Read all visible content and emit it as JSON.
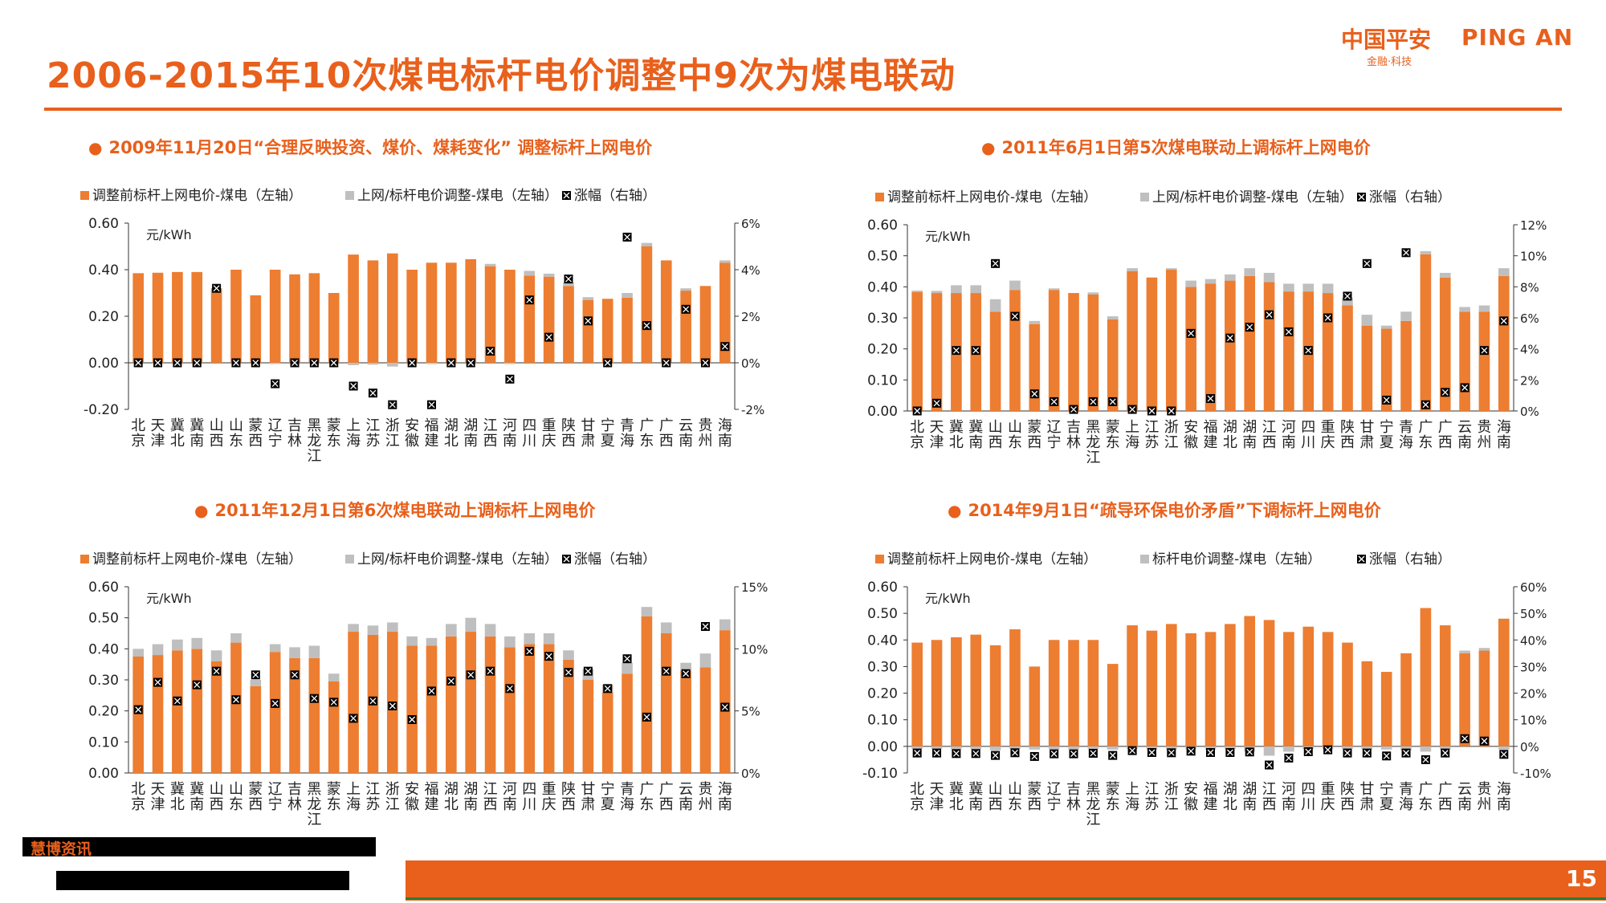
{
  "title": "2006-2015年10次煤电标杆电价调整中9次为煤电联动",
  "logo": {
    "cn": "中国平安",
    "en": "PING AN",
    "sub": "金融·科技"
  },
  "source": {
    "label": "慧博资讯"
  },
  "page_number": "15",
  "colors": {
    "orange": "#ED7D31",
    "gray": "#BFBFBF",
    "title": "#E8601C",
    "marker": "#000000"
  },
  "chart_data": [
    {
      "type": "bar",
      "panel_title": "2009年11月20日“合理反映投资、煤价、煤耗变化” 调整标杆上网电价",
      "legend": [
        "调整前标杆上网电价-煤电（左轴）",
        "上网/标杆电价调整-煤电（左轴）",
        "涨幅（右轴）"
      ],
      "unit": "元/kWh",
      "categories": [
        "北京",
        "天津",
        "冀北",
        "冀南",
        "山西",
        "山东",
        "蒙西",
        "辽宁",
        "吉林",
        "黑龙江",
        "蒙东",
        "上海",
        "江苏",
        "浙江",
        "安徽",
        "福建",
        "湖北",
        "湖南",
        "江西",
        "河南",
        "四川",
        "重庆",
        "陕西",
        "甘肃",
        "宁夏",
        "青海",
        "广东",
        "广西",
        "云南",
        "贵州",
        "海南"
      ],
      "category_lines": [
        [
          "北",
          "京"
        ],
        [
          "天",
          "津"
        ],
        [
          "冀",
          "北"
        ],
        [
          "冀",
          "南"
        ],
        [
          "山",
          "西"
        ],
        [
          "山",
          "东"
        ],
        [
          "蒙",
          "西"
        ],
        [
          "辽",
          "宁"
        ],
        [
          "吉",
          "林"
        ],
        [
          "黑",
          "龙",
          "江"
        ],
        [
          "蒙",
          "东"
        ],
        [
          "上",
          "海"
        ],
        [
          "江",
          "苏"
        ],
        [
          "浙",
          "江"
        ],
        [
          "安",
          "徽"
        ],
        [
          "福",
          "建"
        ],
        [
          "湖",
          "北"
        ],
        [
          "湖",
          "南"
        ],
        [
          "江",
          "西"
        ],
        [
          "河",
          "南"
        ],
        [
          "四",
          "川"
        ],
        [
          "重",
          "庆"
        ],
        [
          "陕",
          "西"
        ],
        [
          "甘",
          "肃"
        ],
        [
          "宁",
          "夏"
        ],
        [
          "青",
          "海"
        ],
        [
          "广",
          "东"
        ],
        [
          "广",
          "西"
        ],
        [
          "云",
          "南"
        ],
        [
          "贵",
          "州"
        ],
        [
          "海",
          "南"
        ]
      ],
      "series": [
        {
          "name": "调整前标杆上网电价-煤电（左轴）",
          "axis": "left",
          "values": [
            0.385,
            0.387,
            0.39,
            0.39,
            0.32,
            0.4,
            0.29,
            0.4,
            0.38,
            0.385,
            0.3,
            0.465,
            0.44,
            0.47,
            0.4,
            0.43,
            0.43,
            0.445,
            0.415,
            0.4,
            0.375,
            0.37,
            0.33,
            0.27,
            0.275,
            0.28,
            0.5,
            0.44,
            0.31,
            0.33,
            0.43
          ]
        },
        {
          "name": "上网/标杆电价调整-煤电（左轴）",
          "axis": "left",
          "values": [
            0,
            0,
            0,
            0,
            0,
            0,
            0,
            -0.005,
            0,
            0,
            0,
            -0.01,
            -0.008,
            -0.016,
            0,
            -0.005,
            0,
            0,
            0.01,
            -0.005,
            0.02,
            0.013,
            0.015,
            0.012,
            0,
            0.02,
            0.015,
            0,
            0.01,
            0,
            0.01
          ]
        },
        {
          "name": "涨幅（右轴）",
          "axis": "right",
          "values": [
            0,
            0,
            0,
            0,
            3.2,
            0,
            0,
            -0.9,
            0,
            0,
            0,
            -1.0,
            -1.3,
            -1.8,
            0,
            -1.8,
            0,
            0,
            0.5,
            -0.7,
            2.7,
            1.1,
            3.6,
            1.8,
            0,
            5.4,
            1.6,
            0,
            2.3,
            0,
            0.7
          ]
        }
      ],
      "ylim_left": [
        -0.2,
        0.6
      ],
      "yticks_left": [
        "-0.20",
        "0.00",
        "0.20",
        "0.40",
        "0.60"
      ],
      "ytick_values_left": [
        -0.2,
        0,
        0.2,
        0.4,
        0.6
      ],
      "ylim_right": [
        -2,
        6
      ],
      "yticks_right": [
        "-2%",
        "0%",
        "2%",
        "4%",
        "6%"
      ],
      "ytick_values_right": [
        -2,
        0,
        2,
        4,
        6
      ]
    },
    {
      "type": "bar",
      "panel_title": "2011年6月1日第5次煤电联动上调标杆上网电价",
      "legend": [
        "调整前标杆上网电价-煤电（左轴）",
        "上网/标杆电价调整-煤电（左轴）",
        "涨幅（右轴）"
      ],
      "unit": "元/kWh",
      "categories": [
        "北京",
        "天津",
        "冀北",
        "冀南",
        "山西",
        "山东",
        "蒙西",
        "辽宁",
        "吉林",
        "黑龙江",
        "蒙东",
        "上海",
        "江苏",
        "浙江",
        "安徽",
        "福建",
        "湖北",
        "湖南",
        "江西",
        "河南",
        "四川",
        "重庆",
        "陕西",
        "甘肃",
        "宁夏",
        "青海",
        "广东",
        "广西",
        "云南",
        "贵州",
        "海南"
      ],
      "category_lines": [
        [
          "北",
          "京"
        ],
        [
          "天",
          "津"
        ],
        [
          "冀",
          "北"
        ],
        [
          "冀",
          "南"
        ],
        [
          "山",
          "西"
        ],
        [
          "山",
          "东"
        ],
        [
          "蒙",
          "西"
        ],
        [
          "辽",
          "宁"
        ],
        [
          "吉",
          "林"
        ],
        [
          "黑",
          "龙",
          "江"
        ],
        [
          "蒙",
          "东"
        ],
        [
          "上",
          "海"
        ],
        [
          "江",
          "苏"
        ],
        [
          "浙",
          "江"
        ],
        [
          "安",
          "徽"
        ],
        [
          "福",
          "建"
        ],
        [
          "湖",
          "北"
        ],
        [
          "湖",
          "南"
        ],
        [
          "江",
          "西"
        ],
        [
          "河",
          "南"
        ],
        [
          "四",
          "川"
        ],
        [
          "重",
          "庆"
        ],
        [
          "陕",
          "西"
        ],
        [
          "甘",
          "肃"
        ],
        [
          "宁",
          "夏"
        ],
        [
          "青",
          "海"
        ],
        [
          "广",
          "东"
        ],
        [
          "广",
          "西"
        ],
        [
          "云",
          "南"
        ],
        [
          "贵",
          "州"
        ],
        [
          "海",
          "南"
        ]
      ],
      "series": [
        {
          "name": "调整前标杆上网电价-煤电（左轴）",
          "axis": "left",
          "values": [
            0.383,
            0.38,
            0.38,
            0.38,
            0.32,
            0.39,
            0.28,
            0.39,
            0.38,
            0.375,
            0.295,
            0.45,
            0.43,
            0.455,
            0.4,
            0.41,
            0.42,
            0.435,
            0.415,
            0.385,
            0.385,
            0.38,
            0.34,
            0.275,
            0.265,
            0.29,
            0.505,
            0.43,
            0.32,
            0.32,
            0.435
          ]
        },
        {
          "name": "上网/标杆电价调整-煤电（左轴）",
          "axis": "left",
          "values": [
            0.005,
            0.007,
            0.025,
            0.025,
            0.04,
            0.03,
            0.01,
            0.005,
            0,
            0.007,
            0.01,
            0.01,
            0,
            0.005,
            0.02,
            0.015,
            0.02,
            0.025,
            0.03,
            0.025,
            0.025,
            0.03,
            0.025,
            0.035,
            0.01,
            0.03,
            0.01,
            0.015,
            0.015,
            0.02,
            0.025
          ]
        },
        {
          "name": "涨幅（右轴）",
          "axis": "right",
          "values": [
            0,
            0.5,
            3.9,
            3.9,
            9.5,
            6.1,
            1.1,
            0.6,
            0.1,
            0.6,
            0.6,
            0.1,
            0,
            0,
            5.0,
            0.8,
            4.7,
            5.4,
            6.2,
            5.1,
            3.9,
            6.0,
            7.4,
            9.5,
            0.7,
            10.2,
            0.4,
            1.2,
            1.5,
            3.9,
            5.8
          ]
        }
      ],
      "ylim_left": [
        0,
        0.6
      ],
      "yticks_left": [
        "0.00",
        "0.10",
        "0.20",
        "0.30",
        "0.40",
        "0.50",
        "0.60"
      ],
      "ytick_values_left": [
        0,
        0.1,
        0.2,
        0.3,
        0.4,
        0.5,
        0.6
      ],
      "ylim_right": [
        0,
        12
      ],
      "yticks_right": [
        "0%",
        "2%",
        "4%",
        "6%",
        "8%",
        "10%",
        "12%"
      ],
      "ytick_values_right": [
        0,
        2,
        4,
        6,
        8,
        10,
        12
      ]
    },
    {
      "type": "bar",
      "panel_title": "2011年12月1日第6次煤电联动上调标杆上网电价",
      "legend": [
        "调整前标杆上网电价-煤电（左轴）",
        "上网/标杆电价调整-煤电（左轴）",
        "涨幅（右轴）"
      ],
      "unit": "元/kWh",
      "categories": [
        "北京",
        "天津",
        "冀北",
        "冀南",
        "山西",
        "山东",
        "蒙西",
        "辽宁",
        "吉林",
        "黑龙江",
        "蒙东",
        "上海",
        "江苏",
        "浙江",
        "安徽",
        "福建",
        "湖北",
        "湖南",
        "江西",
        "河南",
        "四川",
        "重庆",
        "陕西",
        "甘肃",
        "宁夏",
        "青海",
        "广东",
        "广西",
        "云南",
        "贵州",
        "海南"
      ],
      "category_lines": [
        [
          "北",
          "京"
        ],
        [
          "天",
          "津"
        ],
        [
          "冀",
          "北"
        ],
        [
          "冀",
          "南"
        ],
        [
          "山",
          "西"
        ],
        [
          "山",
          "东"
        ],
        [
          "蒙",
          "西"
        ],
        [
          "辽",
          "宁"
        ],
        [
          "吉",
          "林"
        ],
        [
          "黑",
          "龙",
          "江"
        ],
        [
          "蒙",
          "东"
        ],
        [
          "上",
          "海"
        ],
        [
          "江",
          "苏"
        ],
        [
          "浙",
          "江"
        ],
        [
          "安",
          "徽"
        ],
        [
          "福",
          "建"
        ],
        [
          "湖",
          "北"
        ],
        [
          "湖",
          "南"
        ],
        [
          "江",
          "西"
        ],
        [
          "河",
          "南"
        ],
        [
          "四",
          "川"
        ],
        [
          "重",
          "庆"
        ],
        [
          "陕",
          "西"
        ],
        [
          "甘",
          "肃"
        ],
        [
          "宁",
          "夏"
        ],
        [
          "青",
          "海"
        ],
        [
          "广",
          "东"
        ],
        [
          "广",
          "西"
        ],
        [
          "云",
          "南"
        ],
        [
          "贵",
          "州"
        ],
        [
          "海",
          "南"
        ]
      ],
      "series": [
        {
          "name": "调整前标杆上网电价-煤电（左轴）",
          "axis": "left",
          "values": [
            0.375,
            0.38,
            0.395,
            0.4,
            0.36,
            0.42,
            0.28,
            0.39,
            0.37,
            0.37,
            0.295,
            0.455,
            0.445,
            0.455,
            0.41,
            0.41,
            0.44,
            0.455,
            0.44,
            0.405,
            0.415,
            0.415,
            0.365,
            0.3,
            0.26,
            0.32,
            0.505,
            0.45,
            0.33,
            0.34,
            0.46
          ]
        },
        {
          "name": "上网/标杆电价调整-煤电（左轴）",
          "axis": "left",
          "values": [
            0.025,
            0.035,
            0.035,
            0.035,
            0.035,
            0.03,
            0.02,
            0.025,
            0.035,
            0.04,
            0.025,
            0.025,
            0.03,
            0.03,
            0.03,
            0.025,
            0.04,
            0.045,
            0.04,
            0.035,
            0.035,
            0.035,
            0.03,
            0.035,
            0.025,
            0.035,
            0.03,
            0.035,
            0.025,
            0.045,
            0.035
          ]
        },
        {
          "name": "涨幅（右轴）",
          "axis": "right",
          "values": [
            5.1,
            7.3,
            5.8,
            7.1,
            8.2,
            5.9,
            7.9,
            5.6,
            7.9,
            6.0,
            5.7,
            4.4,
            5.8,
            5.4,
            4.3,
            6.6,
            7.4,
            7.9,
            8.2,
            6.8,
            9.8,
            9.4,
            8.1,
            8.2,
            6.8,
            9.2,
            4.5,
            8.2,
            8.0,
            11.8,
            5.3
          ]
        }
      ],
      "ylim_left": [
        0,
        0.6
      ],
      "yticks_left": [
        "0.00",
        "0.10",
        "0.20",
        "0.30",
        "0.40",
        "0.50",
        "0.60"
      ],
      "ytick_values_left": [
        0,
        0.1,
        0.2,
        0.3,
        0.4,
        0.5,
        0.6
      ],
      "ylim_right": [
        0,
        15
      ],
      "yticks_right": [
        "0%",
        "5%",
        "10%",
        "15%"
      ],
      "ytick_values_right": [
        0,
        5,
        10,
        15
      ]
    },
    {
      "type": "bar",
      "panel_title": "2014年9月1日“疏导环保电价矛盾”下调标杆上网电价",
      "legend": [
        "调整前标杆上网电价-煤电（左轴）",
        "标杆电价调整-煤电（左轴）",
        "涨幅（右轴）"
      ],
      "unit": "元/kWh",
      "categories": [
        "北京",
        "天津",
        "冀北",
        "冀南",
        "山西",
        "山东",
        "蒙西",
        "辽宁",
        "吉林",
        "黑龙江",
        "蒙东",
        "上海",
        "江苏",
        "浙江",
        "安徽",
        "福建",
        "湖北",
        "湖南",
        "江西",
        "河南",
        "四川",
        "重庆",
        "陕西",
        "甘肃",
        "宁夏",
        "青海",
        "广东",
        "广西",
        "云南",
        "贵州",
        "海南"
      ],
      "category_lines": [
        [
          "北",
          "京"
        ],
        [
          "天",
          "津"
        ],
        [
          "冀",
          "北"
        ],
        [
          "冀",
          "南"
        ],
        [
          "山",
          "西"
        ],
        [
          "山",
          "东"
        ],
        [
          "蒙",
          "西"
        ],
        [
          "辽",
          "宁"
        ],
        [
          "吉",
          "林"
        ],
        [
          "黑",
          "龙",
          "江"
        ],
        [
          "蒙",
          "东"
        ],
        [
          "上",
          "海"
        ],
        [
          "江",
          "苏"
        ],
        [
          "浙",
          "江"
        ],
        [
          "安",
          "徽"
        ],
        [
          "福",
          "建"
        ],
        [
          "湖",
          "北"
        ],
        [
          "湖",
          "南"
        ],
        [
          "江",
          "西"
        ],
        [
          "河",
          "南"
        ],
        [
          "四",
          "川"
        ],
        [
          "重",
          "庆"
        ],
        [
          "陕",
          "西"
        ],
        [
          "甘",
          "肃"
        ],
        [
          "宁",
          "夏"
        ],
        [
          "青",
          "海"
        ],
        [
          "广",
          "东"
        ],
        [
          "广",
          "西"
        ],
        [
          "云",
          "南"
        ],
        [
          "贵",
          "州"
        ],
        [
          "海",
          "南"
        ]
      ],
      "series": [
        {
          "name": "调整前标杆上网电价-煤电（左轴）",
          "axis": "left",
          "values": [
            0.39,
            0.4,
            0.41,
            0.42,
            0.38,
            0.44,
            0.3,
            0.4,
            0.4,
            0.4,
            0.31,
            0.455,
            0.435,
            0.46,
            0.425,
            0.43,
            0.46,
            0.49,
            0.475,
            0.43,
            0.45,
            0.43,
            0.39,
            0.32,
            0.28,
            0.35,
            0.52,
            0.455,
            0.35,
            0.36,
            0.48
          ]
        },
        {
          "name": "标杆电价调整-煤电（左轴）",
          "axis": "left",
          "values": [
            -0.01,
            -0.01,
            -0.011,
            -0.011,
            -0.015,
            -0.01,
            -0.012,
            -0.011,
            -0.011,
            -0.01,
            -0.012,
            -0.01,
            -0.012,
            -0.012,
            -0.012,
            -0.012,
            -0.01,
            -0.02,
            -0.035,
            -0.02,
            -0.01,
            -0.01,
            -0.01,
            -0.012,
            -0.012,
            -0.015,
            -0.02,
            -0.012,
            0.01,
            0.01,
            -0.012
          ]
        },
        {
          "name": "涨幅（右轴）",
          "axis": "right",
          "values": [
            -2.5,
            -2.5,
            -2.7,
            -2.7,
            -3.4,
            -2.4,
            -3.8,
            -2.8,
            -2.8,
            -2.6,
            -3.4,
            -1.6,
            -2.3,
            -2.4,
            -1.8,
            -2.3,
            -2.3,
            -2.1,
            -7.0,
            -4.4,
            -2.0,
            -1.3,
            -2.5,
            -2.5,
            -3.6,
            -2.5,
            -5.0,
            -2.5,
            2.9,
            2.0,
            -3.0
          ]
        }
      ],
      "ylim_left": [
        -0.1,
        0.6
      ],
      "yticks_left": [
        "-0.10",
        "0.00",
        "0.10",
        "0.20",
        "0.30",
        "0.40",
        "0.50",
        "0.60"
      ],
      "ytick_values_left": [
        -0.1,
        0,
        0.1,
        0.2,
        0.3,
        0.4,
        0.5,
        0.6
      ],
      "ylim_right": [
        -10,
        60
      ],
      "yticks_right": [
        "-10%",
        "0%",
        "10%",
        "20%",
        "30%",
        "40%",
        "50%",
        "60%"
      ],
      "ytick_values_right": [
        -10,
        0,
        10,
        20,
        30,
        40,
        50,
        60
      ]
    }
  ]
}
